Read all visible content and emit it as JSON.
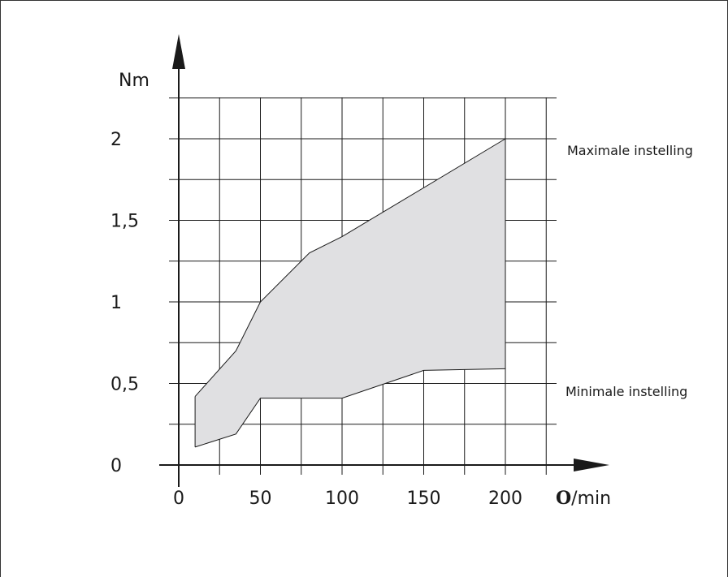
{
  "chart_data": {
    "type": "area",
    "title": "",
    "ylabel": "Nm",
    "xlabel_symbol": "O",
    "xlabel_unit": "/min",
    "x_ticks": [
      0,
      50,
      100,
      150,
      200
    ],
    "x_tick_labels": [
      "0",
      "50",
      "100",
      "150",
      "200"
    ],
    "y_ticks": [
      0,
      0.5,
      1,
      1.5,
      2
    ],
    "y_tick_labels": [
      "0",
      "0,5",
      "1",
      "1,5",
      "2"
    ],
    "xlim": [
      0,
      200
    ],
    "ylim": [
      0,
      2
    ],
    "grid": true,
    "fill_color": "#e0e0e2",
    "series": [
      {
        "name": "Maximale instelling",
        "x": [
          10,
          35,
          50,
          80,
          100,
          200
        ],
        "values": [
          0.42,
          0.7,
          1.0,
          1.3,
          1.4,
          2.0
        ]
      },
      {
        "name": "Minimale instelling",
        "x": [
          10,
          35,
          50,
          100,
          150,
          200
        ],
        "values": [
          0.11,
          0.19,
          0.41,
          0.41,
          0.58,
          0.59
        ]
      }
    ]
  }
}
